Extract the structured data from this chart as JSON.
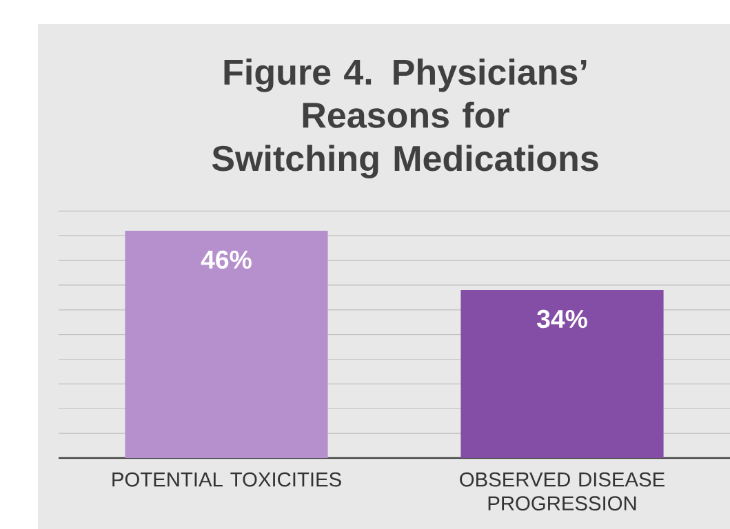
{
  "chart_data": {
    "type": "bar",
    "title": "Figure 4. Physicians’ Reasons for Switching Medications",
    "categories": [
      "POTENTIAL TOXICITIES",
      "OBSERVED DISEASE PROGRESSION"
    ],
    "values": [
      46,
      34
    ],
    "colors": [
      "#b690cd",
      "#844ea6"
    ],
    "value_labels": [
      "46%",
      "34%"
    ],
    "tick_labels": "x",
    "grid": "y"
  }
}
